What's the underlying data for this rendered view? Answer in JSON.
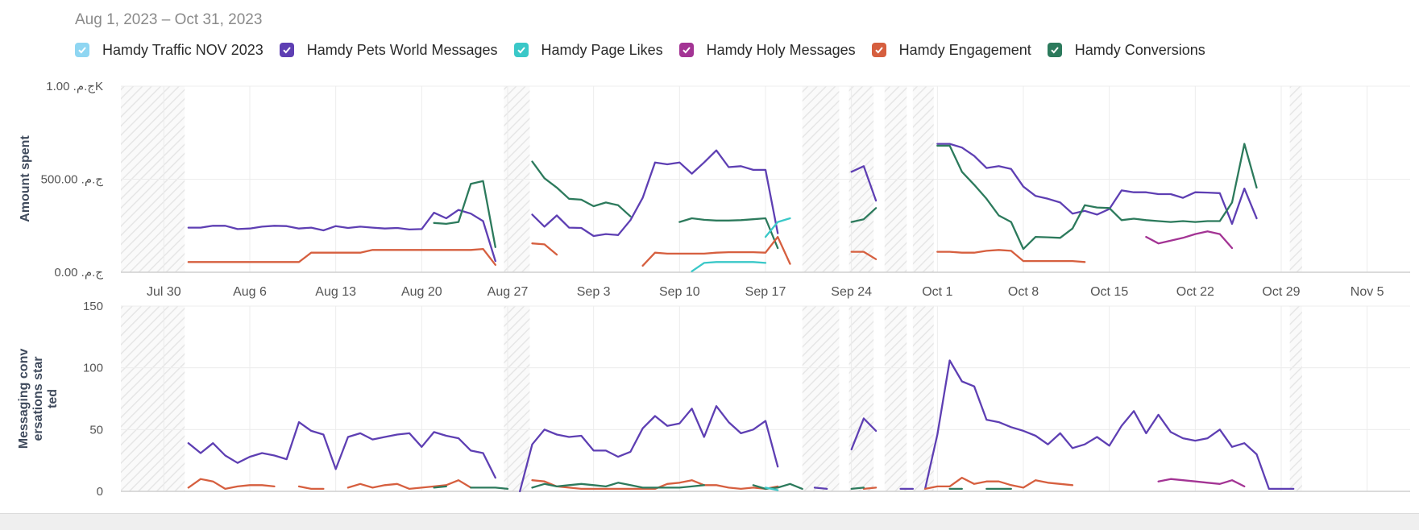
{
  "header": {
    "date_range": "Aug 1, 2023 – Oct 31, 2023"
  },
  "legend": [
    {
      "name": "Hamdy Traffic NOV 2023",
      "color": "#8fd6f2",
      "checked": true
    },
    {
      "name": "Hamdy Pets World Messages",
      "color": "#5e3fb3",
      "checked": true
    },
    {
      "name": "Hamdy Page Likes",
      "color": "#3ac8c8",
      "checked": true
    },
    {
      "name": "Hamdy Holy Messages",
      "color": "#a33494",
      "checked": true
    },
    {
      "name": "Hamdy Engagement",
      "color": "#d65f3f",
      "checked": true
    },
    {
      "name": "Hamdy Conversions",
      "color": "#2c7a5c",
      "checked": true
    }
  ],
  "chart_data": [
    {
      "type": "line",
      "title": "Amount spent",
      "ylabel": "Amount spent",
      "ylim": [
        0,
        1000
      ],
      "y_ticks": [
        {
          "value": 1000,
          "label": "ج.م.‏ 1.00K"
        },
        {
          "value": 500,
          "label": "ج.م.‏ 500.00"
        },
        {
          "value": 0,
          "label": "ج.م.‏ 0.00"
        }
      ],
      "x_ticks": [
        {
          "day": -2,
          "label": "Jul 30"
        },
        {
          "day": 5,
          "label": "Aug 6"
        },
        {
          "day": 12,
          "label": "Aug 13"
        },
        {
          "day": 19,
          "label": "Aug 20"
        },
        {
          "day": 26,
          "label": "Aug 27"
        },
        {
          "day": 33,
          "label": "Sep 3"
        },
        {
          "day": 40,
          "label": "Sep 10"
        },
        {
          "day": 47,
          "label": "Sep 17"
        },
        {
          "day": 54,
          "label": "Sep 24"
        },
        {
          "day": 61,
          "label": "Oct 1"
        },
        {
          "day": 68,
          "label": "Oct 8"
        },
        {
          "day": 75,
          "label": "Oct 15"
        },
        {
          "day": 82,
          "label": "Oct 22"
        },
        {
          "day": 89,
          "label": "Oct 29"
        },
        {
          "day": 96,
          "label": "Nov 5"
        }
      ],
      "x_unit": "days since Aug 1, 2023",
      "x_range": [
        -5.5,
        99.5
      ],
      "shaded_day_ranges": [
        [
          -5.5,
          -0.3
        ],
        [
          25.7,
          27.8
        ],
        [
          50.0,
          53.0
        ],
        [
          53.8,
          55.8
        ],
        [
          56.7,
          58.5
        ],
        [
          59.0,
          60.7
        ],
        [
          89.7,
          90.7
        ]
      ],
      "series": [
        {
          "name": "Hamdy Pets World Messages",
          "segments": [
            {
              "start": 0,
              "values": [
                240,
                240,
                250,
                250,
                232,
                235,
                245,
                250,
                248,
                235,
                240,
                225,
                248,
                238,
                245,
                240,
                235,
                238,
                230,
                232,
                320,
                290,
                335,
                315,
                275,
                60
              ]
            },
            {
              "start": 28,
              "values": [
                310,
                245,
                305,
                240,
                238,
                195,
                205,
                200,
                280,
                400,
                590,
                580,
                590,
                530,
                590,
                655,
                565,
                570,
                550,
                550,
                210
              ]
            },
            {
              "start": 54,
              "values": [
                540,
                570,
                385
              ]
            },
            {
              "start": 61,
              "values": [
                690,
                690,
                670,
                625,
                560,
                570,
                555,
                460,
                410,
                395,
                375,
                315,
                330,
                310,
                340,
                440,
                430,
                430,
                420,
                420,
                400,
                430,
                428,
                425,
                260,
                450,
                290
              ]
            }
          ]
        },
        {
          "name": "Hamdy Conversions",
          "segments": [
            {
              "start": 20,
              "values": [
                265,
                260,
                270,
                475,
                490,
                135
              ]
            },
            {
              "start": 28,
              "values": [
                595,
                505,
                455,
                395,
                390,
                355,
                375,
                360,
                300
              ]
            },
            {
              "start": 40,
              "values": [
                270,
                290,
                282,
                278,
                278,
                280,
                285,
                290,
                130
              ]
            },
            {
              "start": 54,
              "values": [
                270,
                285,
                345
              ]
            },
            {
              "start": 61,
              "values": [
                680,
                680,
                540,
                470,
                395,
                305,
                270,
                125,
                190,
                188,
                185,
                235,
                360,
                348,
                345,
                280,
                288,
                280,
                275,
                270,
                275,
                270,
                275,
                275,
                375,
                690,
                455
              ]
            }
          ]
        },
        {
          "name": "Hamdy Engagement",
          "segments": [
            {
              "start": 0,
              "values": [
                55,
                55,
                55,
                55,
                55,
                55,
                55,
                55,
                55,
                55,
                105,
                105,
                105,
                105,
                105,
                120,
                120,
                120,
                120,
                120,
                120,
                120,
                120,
                120,
                125,
                40
              ]
            },
            {
              "start": 28,
              "values": [
                155,
                150,
                95
              ]
            },
            {
              "start": 37,
              "values": [
                35,
                105,
                100,
                100,
                100,
                100,
                105,
                108,
                108,
                108,
                105,
                190,
                45
              ]
            },
            {
              "start": 54,
              "values": [
                110,
                110,
                70
              ]
            },
            {
              "start": 61,
              "values": [
                110,
                110,
                105,
                105,
                115,
                120,
                115,
                60,
                60,
                60,
                60,
                60,
                55
              ]
            }
          ]
        },
        {
          "name": "Hamdy Page Likes",
          "segments": [
            {
              "start": 41,
              "values": [
                5,
                50,
                55,
                55,
                55,
                55,
                50
              ]
            },
            {
              "start": 47,
              "values": [
                190,
                270,
                290
              ]
            }
          ]
        },
        {
          "name": "Hamdy Holy Messages",
          "segments": [
            {
              "start": 78,
              "values": [
                190,
                155,
                170,
                185,
                205,
                220,
                205,
                130
              ]
            }
          ]
        }
      ]
    },
    {
      "type": "line",
      "title": "Messaging conversations started",
      "ylabel": "Messaging conv ersations star ted",
      "ylim": [
        0,
        150
      ],
      "y_ticks": [
        {
          "value": 150,
          "label": "150"
        },
        {
          "value": 100,
          "label": "100"
        },
        {
          "value": 50,
          "label": "50"
        },
        {
          "value": 0,
          "label": "0"
        }
      ],
      "series": [
        {
          "name": "Hamdy Pets World Messages",
          "segments": [
            {
              "start": 0,
              "values": [
                39,
                31,
                39,
                29,
                23,
                28,
                31,
                29,
                26,
                56,
                49,
                46,
                18,
                44,
                47,
                42,
                44,
                46,
                47,
                36,
                48,
                45,
                43,
                33,
                31,
                11
              ]
            },
            {
              "start": 27,
              "values": [
                0,
                38,
                50,
                46,
                44,
                45,
                33,
                33,
                28,
                32,
                51,
                61,
                53,
                55,
                67,
                44,
                69,
                56,
                47,
                50,
                57,
                20
              ]
            },
            {
              "start": 51,
              "values": [
                3,
                2
              ]
            },
            {
              "start": 54,
              "values": [
                34,
                59,
                49
              ]
            },
            {
              "start": 58,
              "values": [
                2,
                2
              ]
            },
            {
              "start": 60,
              "values": [
                2,
                46,
                106,
                89,
                85,
                58,
                56,
                52,
                49,
                45,
                38,
                47,
                35,
                38,
                44,
                37,
                53,
                65,
                47,
                62,
                48,
                43,
                41,
                43,
                50,
                36,
                39,
                30,
                2,
                2,
                2
              ]
            }
          ]
        },
        {
          "name": "Hamdy Engagement",
          "segments": [
            {
              "start": 0,
              "values": [
                3,
                10,
                8,
                2,
                4,
                5,
                5,
                4
              ]
            },
            {
              "start": 9,
              "values": [
                4,
                2,
                2
              ]
            },
            {
              "start": 13,
              "values": [
                3,
                6,
                3,
                5,
                6,
                2,
                3,
                4,
                5,
                9,
                3
              ]
            },
            {
              "start": 28,
              "values": [
                9,
                8,
                4,
                3,
                2,
                2,
                2,
                2,
                2,
                2,
                2,
                6,
                7,
                9,
                5,
                5,
                3,
                2,
                3,
                2,
                4
              ]
            },
            {
              "start": 55,
              "values": [
                2,
                3
              ]
            },
            {
              "start": 60,
              "values": [
                2,
                4,
                4,
                11,
                6,
                8,
                8,
                5,
                3,
                9,
                7,
                6,
                5
              ]
            }
          ]
        },
        {
          "name": "Hamdy Conversions",
          "segments": [
            {
              "start": 20,
              "values": [
                3,
                4
              ]
            },
            {
              "start": 23,
              "values": [
                3,
                3,
                3,
                2
              ]
            },
            {
              "start": 28,
              "values": [
                3,
                6,
                4,
                5,
                6,
                5,
                4,
                7,
                5,
                3,
                3,
                3,
                3,
                4,
                5
              ]
            },
            {
              "start": 46,
              "values": [
                5,
                2,
                3,
                6,
                2
              ]
            },
            {
              "start": 54,
              "values": [
                2,
                3
              ]
            },
            {
              "start": 62,
              "values": [
                2,
                2
              ]
            },
            {
              "start": 65,
              "values": [
                2,
                2,
                2
              ]
            }
          ]
        },
        {
          "name": "Hamdy Holy Messages",
          "segments": [
            {
              "start": 79,
              "values": [
                8,
                10,
                9,
                8,
                7,
                6,
                9,
                4
              ]
            }
          ]
        },
        {
          "name": "Hamdy Page Likes",
          "segments": [
            {
              "start": 47,
              "values": [
                3,
                1
              ]
            }
          ]
        }
      ]
    }
  ]
}
